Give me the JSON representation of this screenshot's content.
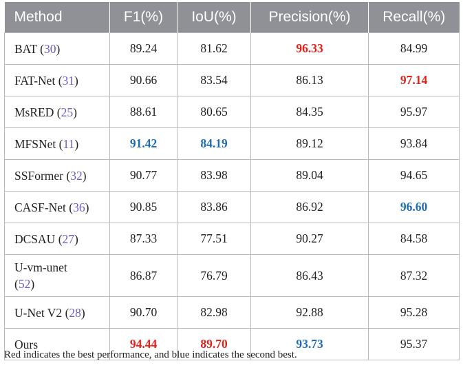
{
  "columns": [
    "Method",
    "F1(%)",
    "IoU(%)",
    "Precision(%)",
    "Recall(%)"
  ],
  "rows": [
    {
      "name": "BAT",
      "ref": "30",
      "values": [
        "89.24",
        "81.62",
        "96.33",
        "84.99"
      ],
      "marks": [
        "",
        "",
        "best",
        ""
      ]
    },
    {
      "name": "FAT-Net",
      "ref": "31",
      "values": [
        "90.66",
        "83.54",
        "86.13",
        "97.14"
      ],
      "marks": [
        "",
        "",
        "",
        "best"
      ]
    },
    {
      "name": "MsRED",
      "ref": "25",
      "values": [
        "88.61",
        "80.65",
        "84.35",
        "95.97"
      ],
      "marks": [
        "",
        "",
        "",
        ""
      ]
    },
    {
      "name": "MFSNet",
      "ref": "11",
      "values": [
        "91.42",
        "84.19",
        "89.12",
        "93.84"
      ],
      "marks": [
        "second",
        "second",
        "",
        ""
      ]
    },
    {
      "name": "SSFormer",
      "ref": "32",
      "values": [
        "90.77",
        "83.98",
        "89.04",
        "94.65"
      ],
      "marks": [
        "",
        "",
        "",
        ""
      ]
    },
    {
      "name": "CASF-Net",
      "ref": "36",
      "values": [
        "90.85",
        "83.86",
        "86.92",
        "96.60"
      ],
      "marks": [
        "",
        "",
        "",
        "second"
      ]
    },
    {
      "name": "DCSAU",
      "ref": "27",
      "values": [
        "87.33",
        "77.51",
        "90.27",
        "84.58"
      ],
      "marks": [
        "",
        "",
        "",
        ""
      ]
    },
    {
      "name": "U-vm-unet",
      "ref": "52",
      "values": [
        "86.87",
        "76.79",
        "86.43",
        "87.32"
      ],
      "marks": [
        "",
        "",
        "",
        ""
      ],
      "wrap": true
    },
    {
      "name": "U-Net V2",
      "ref": "28",
      "values": [
        "90.70",
        "82.98",
        "92.88",
        "95.28"
      ],
      "marks": [
        "",
        "",
        "",
        ""
      ]
    },
    {
      "name": "Ours",
      "ref": "",
      "values": [
        "94.44",
        "89.70",
        "93.73",
        "95.37"
      ],
      "marks": [
        "best",
        "best",
        "second",
        ""
      ]
    }
  ],
  "note": "Red indicates the best performance, and blue indicates the second best.",
  "colors": {
    "best": "#e32119",
    "second": "#1f6cb2",
    "ref": "#6b5fc4",
    "header_bg": "#8f9197"
  }
}
